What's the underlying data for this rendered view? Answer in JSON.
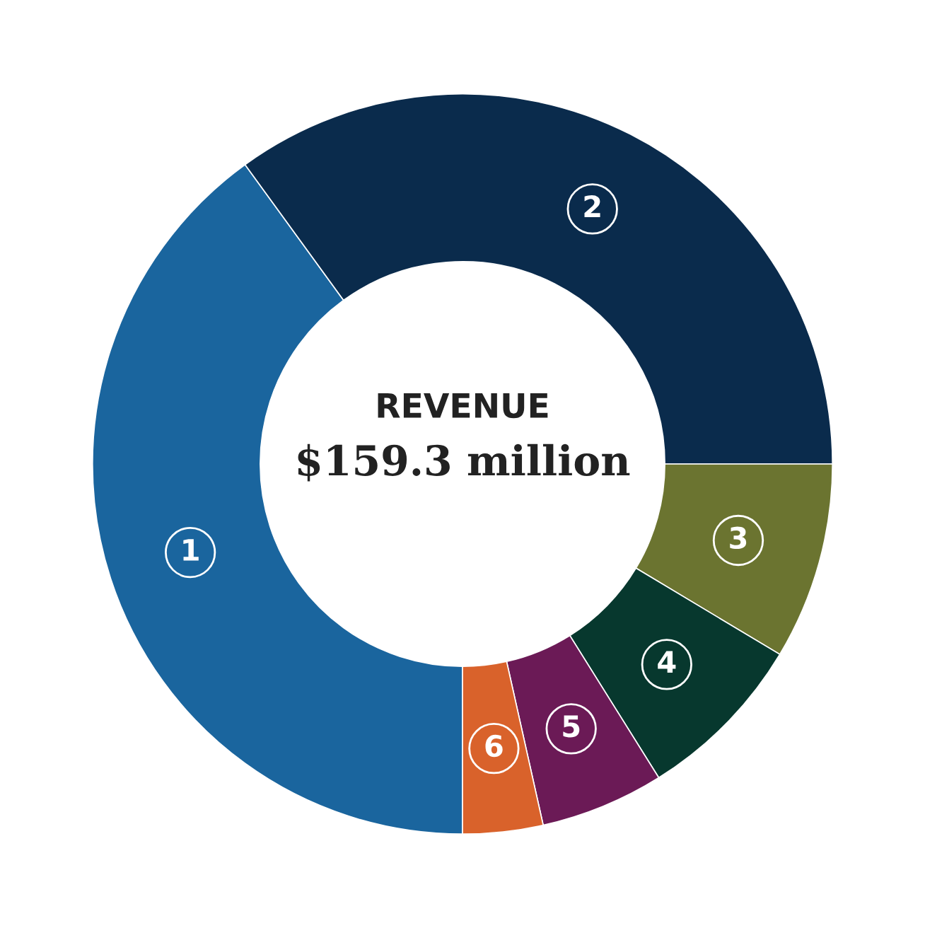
{
  "chart_data": {
    "type": "donut",
    "title": "REVENUE",
    "subtitle": "$159.3 million",
    "categories": [
      "1",
      "2",
      "3",
      "4",
      "5",
      "6"
    ],
    "values": [
      40,
      35,
      8.6,
      7.5,
      5.4,
      3.5
    ],
    "colors": [
      "#1a659e",
      "#0a2b4c",
      "#6b7430",
      "#07382e",
      "#6b1a56",
      "#d9622b"
    ],
    "legend": false
  }
}
